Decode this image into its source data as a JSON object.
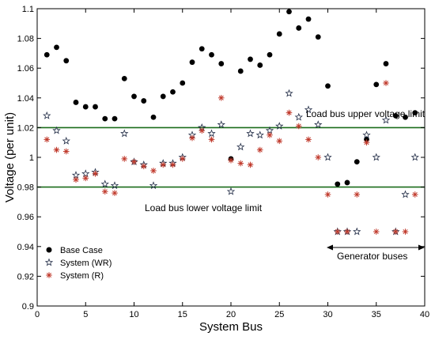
{
  "chart_data": {
    "type": "scatter",
    "xlabel": "System Bus",
    "ylabel": "Voltage (per unit)",
    "xlim": [
      0,
      40
    ],
    "ylim": [
      0.9,
      1.1
    ],
    "xticks": [
      0,
      5,
      10,
      15,
      20,
      25,
      30,
      35,
      40
    ],
    "yticks": [
      0.9,
      0.92,
      0.94,
      0.96,
      0.98,
      1,
      1.02,
      1.04,
      1.06,
      1.08,
      1.1
    ],
    "ytick_labels": [
      "0.9",
      "0.92",
      "0.94",
      "0.96",
      "0.98",
      "1",
      "1.02",
      "1.04",
      "1.06",
      "1.08",
      "1.1"
    ],
    "legend_position": "bottom-left",
    "series": [
      {
        "name": "Base Case",
        "marker": "dot",
        "color": "#000000",
        "x": [
          1,
          2,
          3,
          4,
          5,
          6,
          7,
          8,
          9,
          10,
          11,
          12,
          13,
          14,
          15,
          16,
          17,
          18,
          19,
          20,
          21,
          22,
          23,
          24,
          25,
          26,
          27,
          28,
          29,
          30,
          31,
          32,
          33,
          34,
          35,
          36,
          37,
          38,
          39
        ],
        "y": [
          1.069,
          1.074,
          1.065,
          1.037,
          1.034,
          1.034,
          1.026,
          1.026,
          1.053,
          1.041,
          1.038,
          1.027,
          1.041,
          1.044,
          1.05,
          1.064,
          1.073,
          1.069,
          1.063,
          0.999,
          1.058,
          1.066,
          1.062,
          1.069,
          1.083,
          1.098,
          1.087,
          1.093,
          1.081,
          1.048,
          0.982,
          0.983,
          0.997,
          1.012,
          1.049,
          1.063,
          1.028,
          1.027,
          1.03
        ]
      },
      {
        "name": "System (WR)",
        "marker": "star",
        "color": "#1f2a44",
        "x": [
          1,
          2,
          3,
          4,
          5,
          6,
          7,
          8,
          9,
          10,
          11,
          12,
          13,
          14,
          15,
          16,
          17,
          18,
          19,
          20,
          21,
          22,
          23,
          24,
          25,
          26,
          27,
          28,
          29,
          30,
          31,
          32,
          33,
          34,
          35,
          36,
          37,
          38,
          39
        ],
        "y": [
          1.028,
          1.018,
          1.011,
          0.988,
          0.989,
          0.99,
          0.982,
          0.981,
          1.016,
          0.997,
          0.995,
          0.981,
          0.996,
          0.996,
          1.0,
          1.015,
          1.02,
          1.016,
          1.022,
          0.977,
          1.007,
          1.016,
          1.015,
          1.018,
          1.021,
          1.043,
          1.027,
          1.032,
          1.022,
          1.0,
          0.95,
          0.95,
          0.95,
          1.015,
          1.0,
          1.025,
          0.95,
          0.975,
          1.0
        ]
      },
      {
        "name": "System (R)",
        "marker": "asterisk",
        "color": "#c0392b",
        "x": [
          1,
          2,
          3,
          4,
          5,
          6,
          7,
          8,
          9,
          10,
          11,
          12,
          13,
          14,
          15,
          16,
          17,
          18,
          19,
          20,
          21,
          22,
          23,
          24,
          25,
          26,
          27,
          28,
          29,
          30,
          31,
          32,
          33,
          34,
          35,
          36,
          37,
          38,
          39
        ],
        "y": [
          1.012,
          1.005,
          1.004,
          0.985,
          0.986,
          0.989,
          0.977,
          0.976,
          0.999,
          0.997,
          0.994,
          0.991,
          0.995,
          0.995,
          0.999,
          1.013,
          1.018,
          1.012,
          1.04,
          0.998,
          0.996,
          0.995,
          1.005,
          1.015,
          1.011,
          1.03,
          1.021,
          1.012,
          1.0,
          0.975,
          0.95,
          0.95,
          0.975,
          1.01,
          0.95,
          1.05,
          0.95,
          0.95,
          0.975
        ]
      }
    ],
    "reference_lines": [
      {
        "y": 1.02,
        "label": "Load bus upper voltage limit",
        "color": "#1a6b1a"
      },
      {
        "y": 0.98,
        "label": "Load bus lower voltage limit",
        "color": "#1a6b1a"
      }
    ],
    "range_annotation": {
      "x_start": 30,
      "x_end": 40,
      "y": 0.938,
      "label": "Generator buses"
    }
  }
}
